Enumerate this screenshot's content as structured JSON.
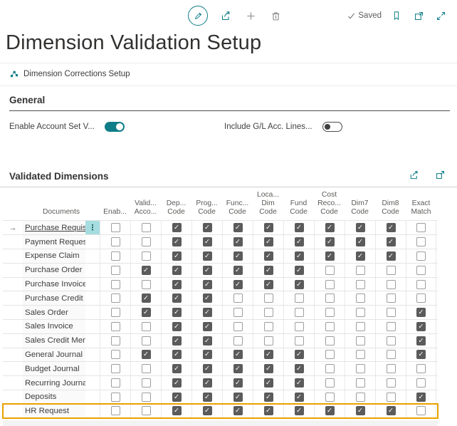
{
  "colors": {
    "accent": "#0f7d87",
    "highlight_row_border": "#e9a200",
    "checkbox_checked": "#5b5b5b",
    "selected_menu_bg": "#a6dde0"
  },
  "toolbar": {
    "saved_label": "Saved",
    "icons": [
      "pencil-icon",
      "share-icon",
      "plus-icon",
      "trash-icon",
      "check-icon",
      "bookmark-icon",
      "popout-icon",
      "expand-icon"
    ]
  },
  "page": {
    "title": "Dimension Validation Setup"
  },
  "nav": {
    "link_label": "Dimension Corrections Setup",
    "icon": "corrections-setup-icon"
  },
  "general": {
    "heading": "General",
    "fields": [
      {
        "label": "Enable Account Set V...",
        "value": true
      },
      {
        "label": "Include G/L Acc. Lines...",
        "value": false
      }
    ]
  },
  "grid": {
    "heading": "Validated Dimensions",
    "icons": [
      "share-icon",
      "focus-mode-icon"
    ],
    "documents_header": "Documents",
    "columns": [
      [
        "Enab..."
      ],
      [
        "Valid...",
        "Acco..."
      ],
      [
        "Dep...",
        "Code"
      ],
      [
        "Prog...",
        "Code"
      ],
      [
        "Func...",
        "Code"
      ],
      [
        "Loca...",
        "Dim",
        "Code"
      ],
      [
        "Fund",
        "Code"
      ],
      [
        "Cost",
        "Reco...",
        "Code"
      ],
      [
        "Dim7",
        "Code"
      ],
      [
        "Dim8",
        "Code"
      ],
      [
        "Exact",
        "Match"
      ]
    ],
    "rows": [
      {
        "name": "Purchase Requisit...",
        "selected": true,
        "highlighted": false,
        "checks": [
          0,
          0,
          1,
          1,
          1,
          1,
          1,
          1,
          1,
          1,
          0
        ]
      },
      {
        "name": "Payment Requests",
        "selected": false,
        "highlighted": false,
        "checks": [
          0,
          0,
          1,
          1,
          1,
          1,
          1,
          1,
          1,
          1,
          0
        ]
      },
      {
        "name": "Expense Claim",
        "selected": false,
        "highlighted": false,
        "checks": [
          0,
          0,
          1,
          1,
          1,
          1,
          1,
          1,
          1,
          1,
          0
        ]
      },
      {
        "name": "Purchase Order",
        "selected": false,
        "highlighted": false,
        "checks": [
          0,
          1,
          1,
          1,
          1,
          1,
          1,
          0,
          0,
          0,
          0
        ]
      },
      {
        "name": "Purchase Invoice",
        "selected": false,
        "highlighted": false,
        "checks": [
          0,
          0,
          1,
          1,
          1,
          1,
          1,
          0,
          0,
          0,
          0
        ]
      },
      {
        "name": "Purchase Credit ...",
        "selected": false,
        "highlighted": false,
        "checks": [
          0,
          1,
          1,
          1,
          0,
          0,
          0,
          0,
          0,
          0,
          0
        ]
      },
      {
        "name": "Sales Order",
        "selected": false,
        "highlighted": false,
        "checks": [
          0,
          1,
          1,
          1,
          0,
          0,
          0,
          0,
          0,
          0,
          1
        ]
      },
      {
        "name": "Sales Invoice",
        "selected": false,
        "highlighted": false,
        "checks": [
          0,
          0,
          1,
          1,
          0,
          0,
          0,
          0,
          0,
          0,
          1
        ]
      },
      {
        "name": "Sales Credit Memo",
        "selected": false,
        "highlighted": false,
        "checks": [
          0,
          0,
          1,
          1,
          0,
          0,
          0,
          0,
          0,
          0,
          1
        ]
      },
      {
        "name": "General Journal",
        "selected": false,
        "highlighted": false,
        "checks": [
          0,
          1,
          1,
          1,
          1,
          1,
          1,
          0,
          0,
          0,
          1
        ]
      },
      {
        "name": "Budget Journal",
        "selected": false,
        "highlighted": false,
        "checks": [
          0,
          0,
          1,
          1,
          1,
          1,
          1,
          0,
          0,
          0,
          0
        ]
      },
      {
        "name": "Recurring Journal",
        "selected": false,
        "highlighted": false,
        "checks": [
          0,
          0,
          1,
          1,
          1,
          1,
          1,
          0,
          0,
          0,
          0
        ]
      },
      {
        "name": "Deposits",
        "selected": false,
        "highlighted": false,
        "checks": [
          0,
          0,
          1,
          1,
          1,
          1,
          1,
          0,
          0,
          0,
          1
        ]
      },
      {
        "name": "HR Request",
        "selected": false,
        "highlighted": true,
        "checks": [
          0,
          0,
          1,
          1,
          1,
          1,
          1,
          1,
          1,
          1,
          0
        ]
      }
    ]
  }
}
